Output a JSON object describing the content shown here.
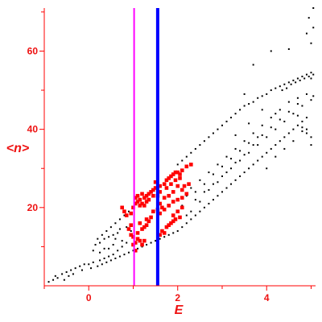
{
  "chart_data": {
    "type": "scatter",
    "title": "",
    "xlabel": "E",
    "ylabel": "<n>",
    "xlim": [
      -1,
      5.1
    ],
    "ylim": [
      0,
      71
    ],
    "x_ticks": [
      0,
      2,
      4
    ],
    "x_tick_labels": [
      "0",
      "2",
      "4"
    ],
    "y_ticks": [
      20,
      40,
      60
    ],
    "y_tick_labels": [
      "20",
      "40",
      "60"
    ],
    "grid": false,
    "legend": "none",
    "colors": {
      "axis": "#ff0000",
      "axis_text": "#ee1111",
      "points_black": "#000000",
      "points_red": "#ff0000",
      "line_magenta": "#ff00ff",
      "line_blue": "#0000ff"
    },
    "vertical_lines": [
      {
        "x": 1.02,
        "color": "#ff00ff",
        "style": "thin"
      },
      {
        "x": 1.55,
        "color": "#0000ff",
        "style": "thick"
      }
    ],
    "series": [
      {
        "color": "#000000",
        "marker": "small-dot",
        "points": [
          [
            -0.9,
            1.0
          ],
          [
            -0.8,
            1.5
          ],
          [
            -0.75,
            2.5
          ],
          [
            -0.7,
            2.0
          ],
          [
            -0.6,
            3.0
          ],
          [
            -0.55,
            1.5
          ],
          [
            -0.5,
            3.5
          ],
          [
            -0.45,
            2.5
          ],
          [
            -0.4,
            4.0
          ],
          [
            -0.35,
            3.0
          ],
          [
            -0.3,
            4.5
          ],
          [
            -0.2,
            5.0
          ],
          [
            -0.15,
            4.0
          ],
          [
            -0.1,
            5.5
          ],
          [
            0.0,
            5.5
          ],
          [
            0.05,
            4.5
          ],
          [
            0.1,
            6.0
          ],
          [
            0.2,
            5.0
          ],
          [
            0.25,
            6.5
          ],
          [
            0.3,
            5.5
          ],
          [
            0.35,
            7.0
          ],
          [
            0.4,
            6.0
          ],
          [
            0.45,
            7.5
          ],
          [
            0.5,
            6.5
          ],
          [
            0.55,
            8.0
          ],
          [
            0.6,
            7.0
          ],
          [
            0.65,
            9.0
          ],
          [
            0.7,
            7.5
          ],
          [
            0.75,
            10.0
          ],
          [
            0.8,
            8.0
          ],
          [
            0.85,
            11.0
          ],
          [
            0.9,
            8.5
          ],
          [
            0.1,
            9.0
          ],
          [
            0.15,
            10.5
          ],
          [
            0.2,
            12.0
          ],
          [
            0.25,
            11.0
          ],
          [
            0.3,
            13.0
          ],
          [
            0.35,
            9.5
          ],
          [
            0.4,
            14.0
          ],
          [
            0.45,
            12.5
          ],
          [
            0.5,
            15.0
          ],
          [
            0.55,
            10.5
          ],
          [
            0.6,
            16.0
          ],
          [
            0.65,
            13.5
          ],
          [
            0.7,
            17.0
          ],
          [
            0.75,
            11.5
          ],
          [
            0.8,
            18.0
          ],
          [
            0.85,
            15.0
          ],
          [
            0.9,
            19.0
          ],
          [
            0.95,
            14.0
          ],
          [
            0.6,
            12.0
          ],
          [
            0.7,
            14.5
          ],
          [
            0.55,
            13.0
          ],
          [
            0.45,
            9.5
          ],
          [
            0.35,
            12.0
          ],
          [
            0.25,
            8.5
          ],
          [
            1.0,
            9.0
          ],
          [
            1.1,
            9.5
          ],
          [
            1.2,
            10.0
          ],
          [
            1.3,
            10.5
          ],
          [
            1.4,
            11.0
          ],
          [
            1.5,
            11.5
          ],
          [
            1.6,
            12.0
          ],
          [
            1.7,
            12.5
          ],
          [
            1.8,
            13.0
          ],
          [
            1.9,
            13.5
          ],
          [
            2.0,
            14.0
          ],
          [
            2.1,
            15.0
          ],
          [
            2.2,
            16.0
          ],
          [
            2.3,
            17.0
          ],
          [
            2.4,
            18.0
          ],
          [
            2.5,
            19.0
          ],
          [
            2.6,
            20.0
          ],
          [
            2.7,
            21.0
          ],
          [
            2.8,
            22.0
          ],
          [
            2.9,
            23.0
          ],
          [
            3.0,
            24.0
          ],
          [
            3.1,
            25.0
          ],
          [
            3.2,
            26.0
          ],
          [
            3.3,
            27.0
          ],
          [
            3.4,
            28.0
          ],
          [
            3.5,
            29.0
          ],
          [
            3.6,
            30.0
          ],
          [
            3.7,
            31.0
          ],
          [
            3.8,
            32.0
          ],
          [
            3.9,
            33.0
          ],
          [
            4.0,
            34.0
          ],
          [
            4.1,
            35.0
          ],
          [
            4.2,
            36.0
          ],
          [
            4.3,
            37.0
          ],
          [
            4.4,
            38.0
          ],
          [
            4.5,
            39.0
          ],
          [
            4.6,
            40.0
          ],
          [
            4.7,
            41.0
          ],
          [
            4.8,
            42.0
          ],
          [
            4.9,
            43.0
          ],
          [
            2.0,
            31.0
          ],
          [
            2.1,
            32.0
          ],
          [
            2.2,
            33.0
          ],
          [
            2.3,
            34.0
          ],
          [
            2.4,
            35.0
          ],
          [
            2.5,
            36.0
          ],
          [
            2.6,
            37.0
          ],
          [
            2.7,
            38.0
          ],
          [
            2.8,
            39.0
          ],
          [
            2.9,
            40.0
          ],
          [
            3.0,
            41.0
          ],
          [
            3.1,
            42.0
          ],
          [
            3.2,
            43.0
          ],
          [
            3.3,
            44.0
          ],
          [
            3.4,
            45.0
          ],
          [
            3.5,
            46.0
          ],
          [
            3.6,
            46.5
          ],
          [
            3.7,
            47.0
          ],
          [
            3.8,
            48.0
          ],
          [
            3.9,
            48.5
          ],
          [
            4.0,
            49.0
          ],
          [
            4.1,
            50.0
          ],
          [
            4.2,
            50.5
          ],
          [
            4.3,
            51.0
          ],
          [
            4.4,
            51.5
          ],
          [
            4.5,
            52.0
          ],
          [
            4.6,
            52.5
          ],
          [
            4.7,
            53.0
          ],
          [
            4.8,
            53.5
          ],
          [
            4.9,
            54.0
          ],
          [
            5.0,
            54.5
          ],
          [
            5.05,
            54.0
          ],
          [
            4.55,
            51.5
          ],
          [
            4.65,
            52.0
          ],
          [
            4.75,
            52.5
          ],
          [
            4.85,
            53.0
          ],
          [
            4.95,
            53.5
          ],
          [
            5.0,
            53.0
          ],
          [
            4.45,
            50.5
          ],
          [
            4.35,
            50.0
          ],
          [
            2.2,
            23.0
          ],
          [
            2.3,
            25.0
          ],
          [
            2.4,
            22.0
          ],
          [
            2.5,
            27.0
          ],
          [
            2.6,
            24.0
          ],
          [
            2.7,
            29.0
          ],
          [
            2.8,
            26.0
          ],
          [
            2.9,
            31.0
          ],
          [
            3.0,
            28.0
          ],
          [
            3.1,
            33.0
          ],
          [
            3.2,
            30.0
          ],
          [
            3.3,
            35.0
          ],
          [
            3.4,
            32.0
          ],
          [
            3.5,
            37.0
          ],
          [
            3.6,
            34.0
          ],
          [
            3.7,
            39.0
          ],
          [
            3.8,
            36.0
          ],
          [
            3.9,
            41.0
          ],
          [
            4.0,
            38.0
          ],
          [
            4.1,
            43.0
          ],
          [
            4.2,
            40.0
          ],
          [
            4.3,
            45.0
          ],
          [
            4.4,
            42.0
          ],
          [
            4.5,
            47.0
          ],
          [
            4.6,
            44.0
          ],
          [
            4.7,
            48.0
          ],
          [
            4.8,
            46.0
          ],
          [
            4.9,
            49.0
          ],
          [
            5.0,
            47.5
          ],
          [
            2.3,
            19.0
          ],
          [
            2.5,
            21.5
          ],
          [
            2.7,
            24.5
          ],
          [
            2.9,
            26.5
          ],
          [
            3.1,
            29.0
          ],
          [
            3.3,
            31.5
          ],
          [
            3.5,
            33.5
          ],
          [
            3.7,
            36.0
          ],
          [
            3.9,
            38.5
          ],
          [
            4.1,
            40.5
          ],
          [
            4.3,
            42.5
          ],
          [
            4.5,
            44.5
          ],
          [
            4.7,
            46.5
          ],
          [
            4.9,
            40.0
          ],
          [
            5.0,
            38.0
          ],
          [
            4.8,
            39.5
          ],
          [
            2.1,
            20.5
          ],
          [
            2.2,
            18.0
          ],
          [
            2.4,
            24.0
          ],
          [
            2.6,
            26.0
          ],
          [
            2.8,
            28.5
          ],
          [
            3.0,
            30.5
          ],
          [
            3.2,
            32.5
          ],
          [
            3.4,
            34.5
          ],
          [
            3.6,
            36.5
          ],
          [
            3.8,
            38.0
          ],
          [
            4.0,
            30.0
          ],
          [
            4.2,
            33.0
          ],
          [
            4.4,
            35.0
          ],
          [
            4.6,
            37.0
          ],
          [
            4.8,
            40.5
          ],
          [
            5.0,
            36.0
          ],
          [
            4.1,
            60.0
          ],
          [
            4.5,
            60.5
          ],
          [
            5.0,
            62.0
          ],
          [
            4.9,
            64.5
          ],
          [
            5.05,
            66.0
          ],
          [
            4.95,
            68.5
          ],
          [
            5.05,
            71.0
          ],
          [
            3.7,
            56.5
          ],
          [
            3.5,
            49.0
          ],
          [
            4.7,
            43.5
          ],
          [
            4.9,
            39.0
          ],
          [
            5.05,
            48.5
          ],
          [
            4.2,
            44.0
          ],
          [
            3.9,
            45.0
          ],
          [
            3.6,
            41.5
          ],
          [
            3.3,
            38.5
          ]
        ]
      },
      {
        "color": "#ff0000",
        "marker": "square",
        "points": [
          [
            1.05,
            21.0
          ],
          [
            1.1,
            21.5
          ],
          [
            1.15,
            22.0
          ],
          [
            1.2,
            21.0
          ],
          [
            1.25,
            22.5
          ],
          [
            1.3,
            23.0
          ],
          [
            1.35,
            23.5
          ],
          [
            1.4,
            24.0
          ],
          [
            1.45,
            24.5
          ],
          [
            1.5,
            25.0
          ],
          [
            1.2,
            23.5
          ],
          [
            1.3,
            21.5
          ],
          [
            1.25,
            20.5
          ],
          [
            1.15,
            20.5
          ],
          [
            1.05,
            22.5
          ],
          [
            1.1,
            23.0
          ],
          [
            1.35,
            22.0
          ],
          [
            1.45,
            23.0
          ],
          [
            1.5,
            26.5
          ],
          [
            1.6,
            25.5
          ],
          [
            1.7,
            26.0
          ],
          [
            1.75,
            27.0
          ],
          [
            1.8,
            27.5
          ],
          [
            1.85,
            28.0
          ],
          [
            1.9,
            28.5
          ],
          [
            1.95,
            29.0
          ],
          [
            2.0,
            29.0
          ],
          [
            2.05,
            28.5
          ],
          [
            2.1,
            29.5
          ],
          [
            2.2,
            30.5
          ],
          [
            2.3,
            31.0
          ],
          [
            1.75,
            25.0
          ],
          [
            1.85,
            26.0
          ],
          [
            1.95,
            27.0
          ],
          [
            2.05,
            27.5
          ],
          [
            1.9,
            24.0
          ],
          [
            1.8,
            23.0
          ],
          [
            2.0,
            25.5
          ],
          [
            1.7,
            22.5
          ],
          [
            1.6,
            21.0
          ],
          [
            1.55,
            19.5
          ],
          [
            1.6,
            18.5
          ],
          [
            1.7,
            19.5
          ],
          [
            1.8,
            20.5
          ],
          [
            1.9,
            21.5
          ],
          [
            2.0,
            22.0
          ],
          [
            2.1,
            22.5
          ],
          [
            2.2,
            23.5
          ],
          [
            1.9,
            18.0
          ],
          [
            2.0,
            19.0
          ],
          [
            2.1,
            20.0
          ],
          [
            1.95,
            17.0
          ],
          [
            1.85,
            16.0
          ],
          [
            1.75,
            15.0
          ],
          [
            1.65,
            14.0
          ],
          [
            1.6,
            13.0
          ],
          [
            1.7,
            13.5
          ],
          [
            1.8,
            15.5
          ],
          [
            1.9,
            16.5
          ],
          [
            2.05,
            17.5
          ],
          [
            1.45,
            19.0
          ],
          [
            1.4,
            17.5
          ],
          [
            1.35,
            16.5
          ],
          [
            1.3,
            15.5
          ],
          [
            1.2,
            14.5
          ],
          [
            1.1,
            13.5
          ],
          [
            1.15,
            16.0
          ],
          [
            1.25,
            15.0
          ],
          [
            1.3,
            17.0
          ],
          [
            1.15,
            11.5
          ],
          [
            1.05,
            11.0
          ],
          [
            1.0,
            12.5
          ],
          [
            0.95,
            13.0
          ],
          [
            0.9,
            14.5
          ],
          [
            0.95,
            15.5
          ],
          [
            1.0,
            10.5
          ],
          [
            1.1,
            12.0
          ],
          [
            1.2,
            10.5
          ],
          [
            1.25,
            11.5
          ],
          [
            1.05,
            9.0
          ],
          [
            0.85,
            18.0
          ],
          [
            0.8,
            19.0
          ],
          [
            0.75,
            20.0
          ],
          [
            1.0,
            20.0
          ],
          [
            0.95,
            18.5
          ],
          [
            1.65,
            20.0
          ],
          [
            1.6,
            24.0
          ],
          [
            1.55,
            23.0
          ],
          [
            2.15,
            25.5
          ],
          [
            2.25,
            26.0
          ],
          [
            2.1,
            24.5
          ]
        ]
      }
    ]
  }
}
